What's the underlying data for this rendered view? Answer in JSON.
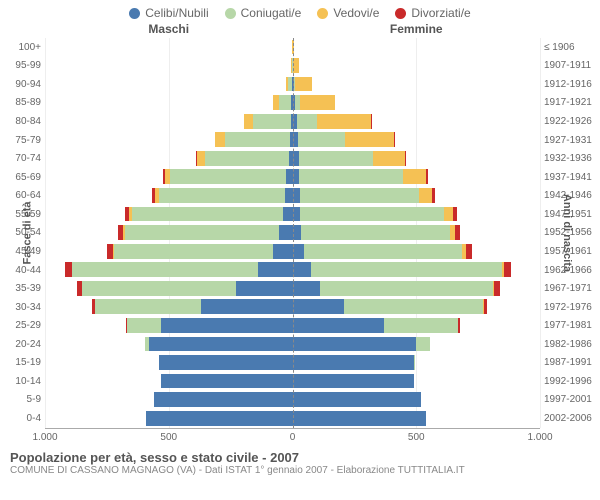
{
  "legend": [
    {
      "label": "Celibi/Nubili",
      "color": "#4a7ab0"
    },
    {
      "label": "Coniugati/e",
      "color": "#b7d7a8"
    },
    {
      "label": "Vedovi/e",
      "color": "#f5c154"
    },
    {
      "label": "Divorziati/e",
      "color": "#c92a2a"
    }
  ],
  "column_headers": {
    "male": "Maschi",
    "female": "Femmine"
  },
  "axes": {
    "y_left_title": "Fasce di età",
    "y_right_title": "Anni di nascita",
    "x_max": 1000,
    "x_ticks": [
      1000,
      500,
      0,
      500,
      1000
    ],
    "x_tick_labels": [
      "1.000",
      "500",
      "0",
      "500",
      "1.000"
    ]
  },
  "caption": {
    "title": "Popolazione per età, sesso e stato civile - 2007",
    "subtitle": "COMUNE DI CASSANO MAGNAGO (VA) - Dati ISTAT 1° gennaio 2007 - Elaborazione TUTTITALIA.IT"
  },
  "rows": [
    {
      "age": "100+",
      "birth": "≤ 1906",
      "m": {
        "c": 0,
        "co": 0,
        "v": 2,
        "d": 0
      },
      "f": {
        "c": 0,
        "co": 0,
        "v": 5,
        "d": 0
      }
    },
    {
      "age": "95-99",
      "birth": "1907-1911",
      "m": {
        "c": 0,
        "co": 2,
        "v": 3,
        "d": 0
      },
      "f": {
        "c": 2,
        "co": 0,
        "v": 25,
        "d": 0
      }
    },
    {
      "age": "90-94",
      "birth": "1912-1916",
      "m": {
        "c": 2,
        "co": 15,
        "v": 10,
        "d": 0
      },
      "f": {
        "c": 5,
        "co": 5,
        "v": 70,
        "d": 0
      }
    },
    {
      "age": "85-89",
      "birth": "1917-1921",
      "m": {
        "c": 5,
        "co": 50,
        "v": 25,
        "d": 0
      },
      "f": {
        "c": 12,
        "co": 20,
        "v": 140,
        "d": 0
      }
    },
    {
      "age": "80-84",
      "birth": "1922-1926",
      "m": {
        "c": 8,
        "co": 150,
        "v": 40,
        "d": 0
      },
      "f": {
        "c": 18,
        "co": 80,
        "v": 220,
        "d": 2
      }
    },
    {
      "age": "75-79",
      "birth": "1927-1931",
      "m": {
        "c": 12,
        "co": 260,
        "v": 40,
        "d": 3
      },
      "f": {
        "c": 22,
        "co": 190,
        "v": 200,
        "d": 3
      }
    },
    {
      "age": "70-74",
      "birth": "1932-1936",
      "m": {
        "c": 15,
        "co": 340,
        "v": 30,
        "d": 5
      },
      "f": {
        "c": 25,
        "co": 300,
        "v": 130,
        "d": 5
      }
    },
    {
      "age": "65-69",
      "birth": "1937-1941",
      "m": {
        "c": 25,
        "co": 470,
        "v": 20,
        "d": 8
      },
      "f": {
        "c": 28,
        "co": 420,
        "v": 90,
        "d": 8
      }
    },
    {
      "age": "60-64",
      "birth": "1942-1946",
      "m": {
        "c": 30,
        "co": 510,
        "v": 15,
        "d": 12
      },
      "f": {
        "c": 30,
        "co": 480,
        "v": 55,
        "d": 12
      }
    },
    {
      "age": "55-59",
      "birth": "1947-1951",
      "m": {
        "c": 40,
        "co": 610,
        "v": 10,
        "d": 18
      },
      "f": {
        "c": 32,
        "co": 580,
        "v": 35,
        "d": 18
      }
    },
    {
      "age": "50-54",
      "birth": "1952-1956",
      "m": {
        "c": 55,
        "co": 620,
        "v": 8,
        "d": 22
      },
      "f": {
        "c": 35,
        "co": 600,
        "v": 22,
        "d": 20
      }
    },
    {
      "age": "45-49",
      "birth": "1957-1961",
      "m": {
        "c": 80,
        "co": 640,
        "v": 5,
        "d": 25
      },
      "f": {
        "c": 45,
        "co": 640,
        "v": 15,
        "d": 25
      }
    },
    {
      "age": "40-44",
      "birth": "1962-1966",
      "m": {
        "c": 140,
        "co": 750,
        "v": 3,
        "d": 28
      },
      "f": {
        "c": 75,
        "co": 770,
        "v": 10,
        "d": 28
      }
    },
    {
      "age": "35-39",
      "birth": "1967-1971",
      "m": {
        "c": 230,
        "co": 620,
        "v": 2,
        "d": 20
      },
      "f": {
        "c": 110,
        "co": 700,
        "v": 5,
        "d": 22
      }
    },
    {
      "age": "30-34",
      "birth": "1972-1976",
      "m": {
        "c": 370,
        "co": 430,
        "v": 0,
        "d": 12
      },
      "f": {
        "c": 210,
        "co": 560,
        "v": 2,
        "d": 15
      }
    },
    {
      "age": "25-29",
      "birth": "1977-1981",
      "m": {
        "c": 530,
        "co": 140,
        "v": 0,
        "d": 3
      },
      "f": {
        "c": 370,
        "co": 300,
        "v": 0,
        "d": 5
      }
    },
    {
      "age": "20-24",
      "birth": "1982-1986",
      "m": {
        "c": 580,
        "co": 15,
        "v": 0,
        "d": 0
      },
      "f": {
        "c": 500,
        "co": 55,
        "v": 0,
        "d": 0
      }
    },
    {
      "age": "15-19",
      "birth": "1987-1991",
      "m": {
        "c": 540,
        "co": 0,
        "v": 0,
        "d": 0
      },
      "f": {
        "c": 490,
        "co": 2,
        "v": 0,
        "d": 0
      }
    },
    {
      "age": "10-14",
      "birth": "1992-1996",
      "m": {
        "c": 530,
        "co": 0,
        "v": 0,
        "d": 0
      },
      "f": {
        "c": 490,
        "co": 0,
        "v": 0,
        "d": 0
      }
    },
    {
      "age": "5-9",
      "birth": "1997-2001",
      "m": {
        "c": 560,
        "co": 0,
        "v": 0,
        "d": 0
      },
      "f": {
        "c": 520,
        "co": 0,
        "v": 0,
        "d": 0
      }
    },
    {
      "age": "0-4",
      "birth": "2002-2006",
      "m": {
        "c": 590,
        "co": 0,
        "v": 0,
        "d": 0
      },
      "f": {
        "c": 540,
        "co": 0,
        "v": 0,
        "d": 0
      }
    }
  ]
}
